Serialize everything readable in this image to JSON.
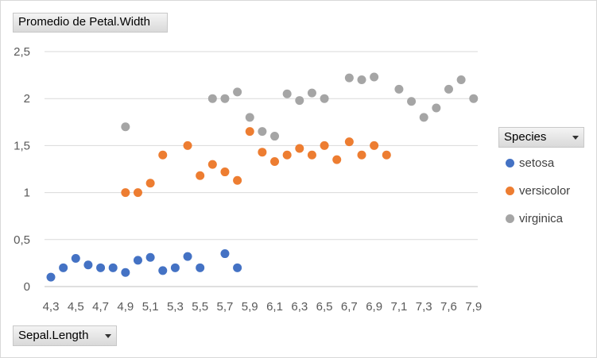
{
  "value_field": {
    "label": "Promedio de Petal.Width"
  },
  "axis_field": {
    "label": "Sepal.Length"
  },
  "legend_field": {
    "label": "Species"
  },
  "icons": {
    "dropdown": "chevron-down-icon"
  },
  "chart_data": {
    "type": "scatter",
    "title": "",
    "xlabel": "",
    "ylabel": "",
    "categories": [
      "4,3",
      "4,4",
      "4,5",
      "4,6",
      "4,7",
      "4,8",
      "4,9",
      "5",
      "5,1",
      "5,2",
      "5,3",
      "5,4",
      "5,5",
      "5,6",
      "5,7",
      "5,8",
      "5,9",
      "6",
      "6,1",
      "6,2",
      "6,3",
      "6,4",
      "6,5",
      "6,6",
      "6,7",
      "6,8",
      "6,9",
      "7",
      "7,1",
      "7,2",
      "7,3",
      "7,4",
      "7,6",
      "7,7",
      "7,9"
    ],
    "x_tick_labels": [
      "4,3",
      "4,5",
      "4,7",
      "4,9",
      "5,1",
      "5,3",
      "5,5",
      "5,7",
      "5,9",
      "6,1",
      "6,3",
      "6,5",
      "6,7",
      "6,9",
      "7,1",
      "7,3",
      "7,6",
      "7,9"
    ],
    "y_tick_labels": [
      "0",
      "0,5",
      "1",
      "1,5",
      "2",
      "2,5"
    ],
    "ylim": [
      0,
      2.5
    ],
    "grid": true,
    "legend_position": "right",
    "series": [
      {
        "name": "setosa",
        "color": "#4472C4",
        "values": [
          0.1,
          0.2,
          0.3,
          0.23,
          0.2,
          0.2,
          0.15,
          0.28,
          0.31,
          0.17,
          0.2,
          0.32,
          0.2,
          null,
          0.35,
          0.2,
          null,
          null,
          null,
          null,
          null,
          null,
          null,
          null,
          null,
          null,
          null,
          null,
          null,
          null,
          null,
          null,
          null,
          null,
          null
        ]
      },
      {
        "name": "versicolor",
        "color": "#ED7D31",
        "values": [
          null,
          null,
          null,
          null,
          null,
          null,
          1.0,
          1.0,
          1.1,
          1.4,
          null,
          1.5,
          1.18,
          1.3,
          1.22,
          1.13,
          1.65,
          1.43,
          1.33,
          1.4,
          1.47,
          1.4,
          1.5,
          1.35,
          1.54,
          1.4,
          1.5,
          1.4,
          null,
          null,
          null,
          null,
          null,
          null,
          null
        ]
      },
      {
        "name": "virginica",
        "color": "#A5A5A5",
        "values": [
          null,
          null,
          null,
          null,
          null,
          null,
          1.7,
          null,
          null,
          null,
          null,
          null,
          null,
          2.0,
          2.0,
          2.07,
          1.8,
          1.65,
          1.6,
          2.05,
          1.98,
          2.06,
          2.0,
          null,
          2.22,
          2.2,
          2.23,
          null,
          2.1,
          1.97,
          1.8,
          1.9,
          2.1,
          2.2,
          2.0
        ]
      }
    ]
  }
}
